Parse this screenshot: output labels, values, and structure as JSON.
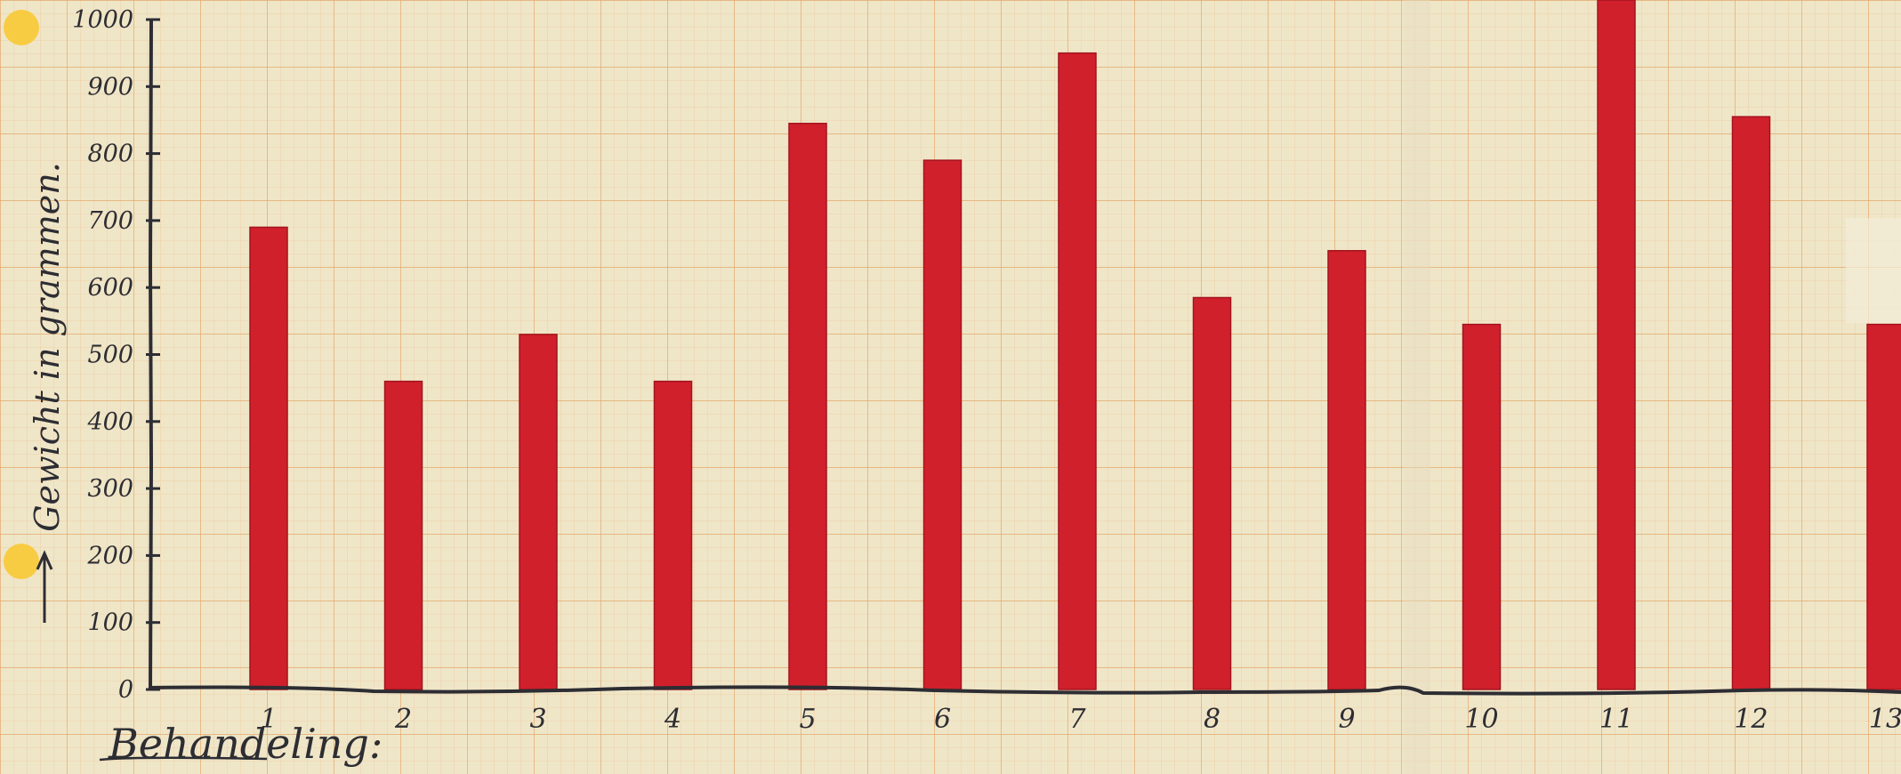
{
  "chart_data": {
    "type": "bar",
    "ylabel": "Gewicht in grammen.",
    "xlabel": "Behandeling:",
    "ylim": [
      0,
      1000
    ],
    "yticks": [
      0,
      100,
      200,
      300,
      400,
      500,
      600,
      700,
      800,
      900,
      1000
    ],
    "categories": [
      "1",
      "2",
      "3",
      "4",
      "5",
      "6",
      "7",
      "8",
      "9",
      "10",
      "11",
      "12",
      "13"
    ],
    "values": [
      690,
      460,
      530,
      460,
      845,
      790,
      950,
      585,
      655,
      545,
      1050,
      855,
      545
    ],
    "grid": true,
    "legend": "none",
    "colors": {
      "bar": "#d0202c",
      "bar_edge": "#a3141e",
      "paper": "#efe6c8",
      "grid_minor": "#efc9a0",
      "grid_major": "#e4a86a",
      "ink": "#2d2d33",
      "dot": "#f7cc43"
    }
  }
}
